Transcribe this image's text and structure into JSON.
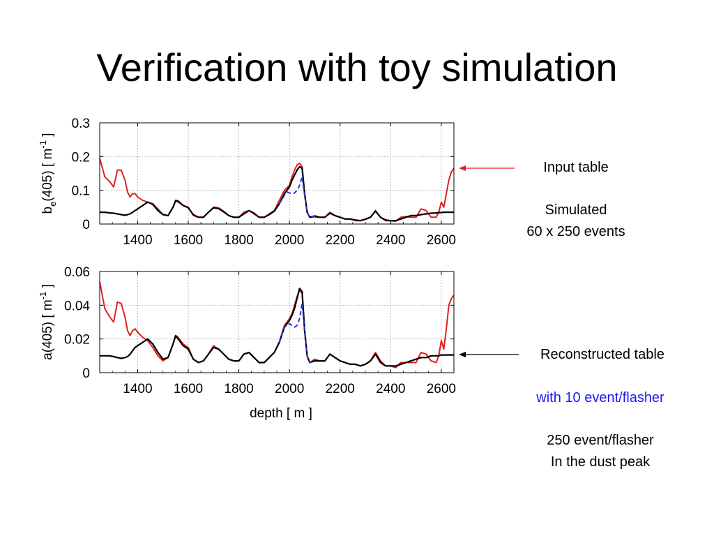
{
  "slide": {
    "title": "Verification with toy simulation"
  },
  "annotations": {
    "input_table": "Input table",
    "simulated_line1": "Simulated",
    "simulated_line2": "60 x 250 events",
    "reconstructed_table": "Reconstructed table",
    "with_10": "with 10 event/flasher",
    "per_250": "250 event/flasher",
    "dust_peak": "In the dust peak"
  },
  "colors": {
    "input": "#e02020",
    "reconstructed": "#000000",
    "reconstructed_10": "#2233dd",
    "grid": "#bbbbbb"
  },
  "chart_data": [
    {
      "type": "line",
      "ylabel_main": "b",
      "ylabel_sub": "e",
      "ylabel_rest": "(405) [ m",
      "ylabel_sup": "-1",
      "ylabel_end": " ]",
      "xlabel": "",
      "xlim": [
        1250,
        2650
      ],
      "ylim": [
        0,
        0.3
      ],
      "xticks": [
        "1400",
        "1600",
        "1800",
        "2000",
        "2200",
        "2400",
        "2600"
      ],
      "yticks": [
        "0",
        "0.1",
        "0.2",
        "0.3"
      ],
      "grid": true,
      "series": [
        {
          "name": "Input table",
          "color": "input",
          "dash": false,
          "width": 2,
          "x": [
            1250,
            1270,
            1290,
            1305,
            1320,
            1335,
            1350,
            1360,
            1370,
            1380,
            1390,
            1400,
            1420,
            1440,
            1460,
            1480,
            1500,
            1520,
            1540,
            1550,
            1560,
            1580,
            1600,
            1620,
            1640,
            1660,
            1680,
            1700,
            1720,
            1740,
            1760,
            1780,
            1800,
            1820,
            1840,
            1860,
            1880,
            1900,
            1920,
            1940,
            1960,
            1980,
            2000,
            2010,
            2020,
            2030,
            2040,
            2050,
            2060,
            2070,
            2080,
            2100,
            2120,
            2140,
            2160,
            2180,
            2200,
            2220,
            2240,
            2260,
            2280,
            2300,
            2320,
            2340,
            2360,
            2380,
            2400,
            2420,
            2440,
            2460,
            2480,
            2500,
            2520,
            2540,
            2560,
            2580,
            2590,
            2600,
            2610,
            2620,
            2630,
            2640,
            2650
          ],
          "y": [
            0.195,
            0.14,
            0.125,
            0.11,
            0.16,
            0.16,
            0.13,
            0.095,
            0.08,
            0.09,
            0.09,
            0.08,
            0.07,
            0.065,
            0.06,
            0.045,
            0.028,
            0.025,
            0.05,
            0.068,
            0.065,
            0.055,
            0.05,
            0.025,
            0.02,
            0.02,
            0.035,
            0.05,
            0.048,
            0.038,
            0.025,
            0.02,
            0.02,
            0.035,
            0.04,
            0.03,
            0.02,
            0.02,
            0.03,
            0.04,
            0.07,
            0.1,
            0.115,
            0.14,
            0.16,
            0.175,
            0.18,
            0.17,
            0.09,
            0.035,
            0.02,
            0.025,
            0.02,
            0.02,
            0.035,
            0.025,
            0.02,
            0.015,
            0.015,
            0.01,
            0.01,
            0.015,
            0.02,
            0.04,
            0.02,
            0.01,
            0.01,
            0.008,
            0.02,
            0.022,
            0.02,
            0.02,
            0.045,
            0.04,
            0.02,
            0.02,
            0.035,
            0.065,
            0.05,
            0.09,
            0.13,
            0.155,
            0.165
          ]
        },
        {
          "name": "Reconstructed table",
          "color": "reconstructed",
          "dash": false,
          "width": 2.2,
          "x": [
            1250,
            1270,
            1290,
            1305,
            1320,
            1335,
            1350,
            1360,
            1370,
            1380,
            1390,
            1400,
            1420,
            1440,
            1460,
            1480,
            1500,
            1520,
            1540,
            1550,
            1560,
            1580,
            1600,
            1620,
            1640,
            1660,
            1680,
            1700,
            1720,
            1740,
            1760,
            1780,
            1800,
            1820,
            1840,
            1860,
            1880,
            1900,
            1920,
            1940,
            1960,
            1980,
            2000,
            2010,
            2020,
            2030,
            2040,
            2050,
            2060,
            2070,
            2080,
            2100,
            2120,
            2140,
            2160,
            2180,
            2200,
            2220,
            2240,
            2260,
            2280,
            2300,
            2320,
            2340,
            2360,
            2380,
            2400,
            2420,
            2440,
            2460,
            2480,
            2500,
            2520,
            2540,
            2560,
            2580,
            2590,
            2600,
            2610,
            2620,
            2630,
            2640,
            2650
          ],
          "y": [
            0.035,
            0.035,
            0.033,
            0.032,
            0.03,
            0.028,
            0.026,
            0.028,
            0.03,
            0.035,
            0.04,
            0.045,
            0.055,
            0.065,
            0.058,
            0.04,
            0.028,
            0.025,
            0.05,
            0.07,
            0.068,
            0.055,
            0.048,
            0.028,
            0.02,
            0.02,
            0.035,
            0.048,
            0.046,
            0.036,
            0.025,
            0.02,
            0.02,
            0.03,
            0.04,
            0.032,
            0.02,
            0.02,
            0.028,
            0.038,
            0.06,
            0.09,
            0.11,
            0.13,
            0.145,
            0.16,
            0.17,
            0.165,
            0.09,
            0.035,
            0.02,
            0.022,
            0.02,
            0.02,
            0.032,
            0.025,
            0.02,
            0.015,
            0.015,
            0.012,
            0.01,
            0.014,
            0.02,
            0.038,
            0.02,
            0.012,
            0.01,
            0.01,
            0.015,
            0.02,
            0.025,
            0.025,
            0.028,
            0.03,
            0.032,
            0.033,
            0.034,
            0.034,
            0.035,
            0.035,
            0.035,
            0.035,
            0.035
          ]
        },
        {
          "name": "with 10 event/flasher",
          "color": "reconstructed_10",
          "dash": true,
          "width": 2,
          "x": [
            1960,
            1980,
            1990,
            2000,
            2010,
            2020,
            2030,
            2040,
            2050,
            2060,
            2070,
            2080,
            2100
          ],
          "y": [
            0.06,
            0.085,
            0.095,
            0.092,
            0.09,
            0.092,
            0.1,
            0.115,
            0.14,
            0.085,
            0.035,
            0.02,
            0.022
          ]
        }
      ]
    },
    {
      "type": "line",
      "ylabel_main": "a(405) [ m",
      "ylabel_sub": "",
      "ylabel_rest": "",
      "ylabel_sup": "-1",
      "ylabel_end": " ]",
      "xlabel": "depth [ m ]",
      "xlim": [
        1250,
        2650
      ],
      "ylim": [
        0,
        0.06
      ],
      "xticks": [
        "1400",
        "1600",
        "1800",
        "2000",
        "2200",
        "2400",
        "2600"
      ],
      "yticks": [
        "0",
        "0.02",
        "0.04",
        "0.06"
      ],
      "grid": true,
      "series": [
        {
          "name": "Input table",
          "color": "input",
          "dash": false,
          "width": 2,
          "x": [
            1250,
            1270,
            1290,
            1305,
            1320,
            1335,
            1350,
            1360,
            1370,
            1380,
            1390,
            1400,
            1420,
            1440,
            1460,
            1480,
            1500,
            1520,
            1540,
            1550,
            1560,
            1580,
            1600,
            1620,
            1640,
            1660,
            1680,
            1700,
            1720,
            1740,
            1760,
            1780,
            1800,
            1820,
            1840,
            1860,
            1880,
            1900,
            1920,
            1940,
            1960,
            1980,
            2000,
            2010,
            2020,
            2030,
            2040,
            2050,
            2060,
            2070,
            2080,
            2100,
            2120,
            2140,
            2160,
            2180,
            2200,
            2220,
            2240,
            2260,
            2280,
            2300,
            2320,
            2340,
            2360,
            2380,
            2400,
            2420,
            2440,
            2460,
            2480,
            2500,
            2520,
            2540,
            2560,
            2580,
            2590,
            2600,
            2610,
            2620,
            2630,
            2640,
            2650
          ],
          "y": [
            0.054,
            0.038,
            0.033,
            0.03,
            0.042,
            0.041,
            0.033,
            0.025,
            0.022,
            0.025,
            0.026,
            0.024,
            0.021,
            0.019,
            0.015,
            0.01,
            0.007,
            0.009,
            0.017,
            0.022,
            0.021,
            0.017,
            0.015,
            0.008,
            0.006,
            0.007,
            0.011,
            0.016,
            0.014,
            0.011,
            0.008,
            0.007,
            0.007,
            0.011,
            0.012,
            0.009,
            0.006,
            0.006,
            0.009,
            0.012,
            0.018,
            0.028,
            0.032,
            0.035,
            0.04,
            0.045,
            0.049,
            0.047,
            0.025,
            0.01,
            0.006,
            0.008,
            0.007,
            0.007,
            0.011,
            0.009,
            0.007,
            0.006,
            0.005,
            0.005,
            0.004,
            0.005,
            0.007,
            0.012,
            0.007,
            0.004,
            0.004,
            0.003,
            0.006,
            0.006,
            0.006,
            0.006,
            0.012,
            0.011,
            0.007,
            0.006,
            0.01,
            0.019,
            0.014,
            0.026,
            0.04,
            0.044,
            0.046
          ]
        },
        {
          "name": "Reconstructed table",
          "color": "reconstructed",
          "dash": false,
          "width": 2.2,
          "x": [
            1250,
            1270,
            1290,
            1305,
            1320,
            1335,
            1350,
            1360,
            1370,
            1380,
            1390,
            1400,
            1420,
            1440,
            1460,
            1480,
            1500,
            1520,
            1540,
            1550,
            1560,
            1580,
            1600,
            1620,
            1640,
            1660,
            1680,
            1700,
            1720,
            1740,
            1760,
            1780,
            1800,
            1820,
            1840,
            1860,
            1880,
            1900,
            1920,
            1940,
            1960,
            1980,
            2000,
            2010,
            2020,
            2030,
            2040,
            2050,
            2060,
            2070,
            2080,
            2100,
            2120,
            2140,
            2160,
            2180,
            2200,
            2220,
            2240,
            2260,
            2280,
            2300,
            2320,
            2340,
            2360,
            2380,
            2400,
            2420,
            2440,
            2460,
            2480,
            2500,
            2520,
            2540,
            2560,
            2580,
            2590,
            2600,
            2610,
            2620,
            2630,
            2640,
            2650
          ],
          "y": [
            0.01,
            0.01,
            0.01,
            0.0095,
            0.009,
            0.0085,
            0.009,
            0.0095,
            0.011,
            0.013,
            0.015,
            0.016,
            0.018,
            0.02,
            0.017,
            0.012,
            0.008,
            0.009,
            0.017,
            0.022,
            0.02,
            0.016,
            0.014,
            0.008,
            0.006,
            0.007,
            0.011,
            0.015,
            0.014,
            0.011,
            0.008,
            0.007,
            0.007,
            0.011,
            0.012,
            0.009,
            0.006,
            0.006,
            0.009,
            0.012,
            0.018,
            0.027,
            0.031,
            0.034,
            0.038,
            0.044,
            0.05,
            0.048,
            0.025,
            0.01,
            0.006,
            0.007,
            0.007,
            0.007,
            0.011,
            0.009,
            0.007,
            0.006,
            0.005,
            0.005,
            0.004,
            0.005,
            0.007,
            0.011,
            0.006,
            0.004,
            0.004,
            0.004,
            0.005,
            0.006,
            0.007,
            0.008,
            0.009,
            0.009,
            0.01,
            0.01,
            0.01,
            0.0105,
            0.0105,
            0.0105,
            0.0105,
            0.0105,
            0.0105
          ]
        },
        {
          "name": "with 10 event/flasher",
          "color": "reconstructed_10",
          "dash": true,
          "width": 2,
          "x": [
            1960,
            1980,
            1990,
            2000,
            2010,
            2020,
            2030,
            2040,
            2050,
            2060,
            2070,
            2080,
            2100
          ],
          "y": [
            0.018,
            0.027,
            0.028,
            0.029,
            0.028,
            0.027,
            0.028,
            0.032,
            0.041,
            0.025,
            0.01,
            0.006,
            0.007
          ]
        }
      ]
    }
  ]
}
